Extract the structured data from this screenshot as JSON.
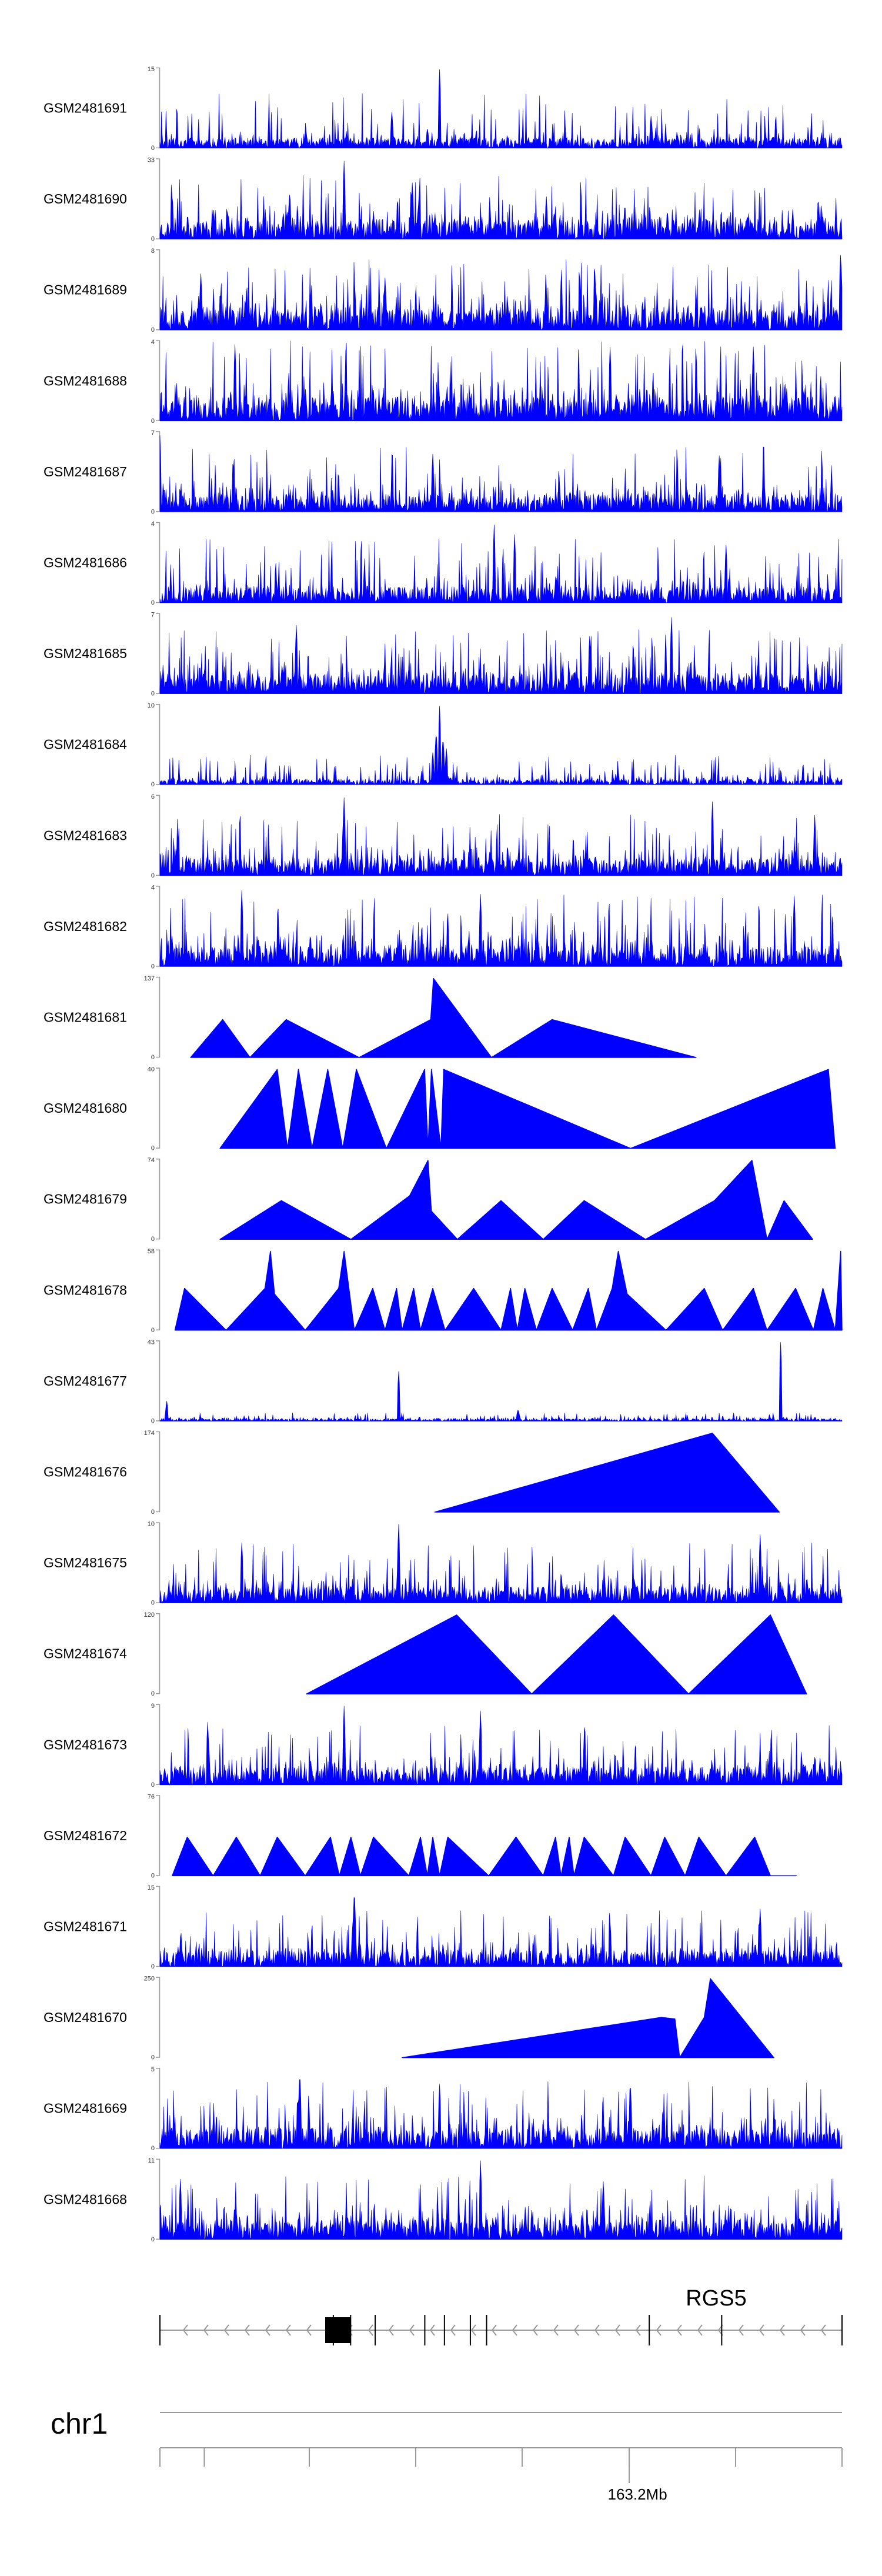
{
  "chart_data": {
    "type": "area",
    "title": "",
    "color": "#0000ff",
    "axis_color": "#999999",
    "tracks": [
      {
        "name": "GSM2481691",
        "ymax": 15,
        "pattern": "dense",
        "seed": 11,
        "base": 0.13,
        "amp": 0.55,
        "peaks": [
          [
            0.41,
            0.98
          ],
          [
            0.34,
            0.45
          ],
          [
            0.72,
            0.4
          ]
        ]
      },
      {
        "name": "GSM2481690",
        "ymax": 33,
        "pattern": "dense",
        "seed": 23,
        "base": 0.25,
        "amp": 0.55,
        "peaks": [
          [
            0.27,
            0.97
          ],
          [
            0.37,
            0.7
          ],
          [
            0.19,
            0.55
          ]
        ]
      },
      {
        "name": "GSM2481689",
        "ymax": 8,
        "pattern": "dense",
        "seed": 37,
        "base": 0.28,
        "amp": 0.6,
        "peaks": [
          [
            0.998,
            0.98
          ],
          [
            0.06,
            0.7
          ],
          [
            0.33,
            0.65
          ]
        ]
      },
      {
        "name": "GSM2481688",
        "ymax": 4,
        "pattern": "dense",
        "seed": 41,
        "base": 0.3,
        "amp": 0.7,
        "peaks": [
          [
            0.11,
            0.95
          ],
          [
            0.66,
            0.92
          ],
          [
            0.87,
            0.92
          ]
        ]
      },
      {
        "name": "GSM2481687",
        "ymax": 7,
        "pattern": "dense",
        "seed": 53,
        "base": 0.22,
        "amp": 0.6,
        "peaks": [
          [
            0.0,
            0.95
          ],
          [
            0.4,
            0.72
          ],
          [
            0.82,
            0.7
          ]
        ]
      },
      {
        "name": "GSM2481686",
        "ymax": 4,
        "pattern": "dense",
        "seed": 67,
        "base": 0.2,
        "amp": 0.6,
        "peaks": [
          [
            0.49,
            0.97
          ],
          [
            0.52,
            0.85
          ],
          [
            0.83,
            0.72
          ]
        ]
      },
      {
        "name": "GSM2481685",
        "ymax": 7,
        "pattern": "dense",
        "seed": 71,
        "base": 0.25,
        "amp": 0.55,
        "peaks": [
          [
            0.2,
            0.85
          ],
          [
            0.75,
            0.95
          ],
          [
            0.63,
            0.72
          ]
        ]
      },
      {
        "name": "GSM2481684",
        "ymax": 10,
        "pattern": "dense",
        "seed": 83,
        "base": 0.07,
        "amp": 0.3,
        "peaks": [
          [
            0.4,
            0.4
          ],
          [
            0.405,
            0.68
          ],
          [
            0.41,
            0.98
          ],
          [
            0.415,
            0.6
          ],
          [
            0.42,
            0.45
          ]
        ]
      },
      {
        "name": "GSM2481683",
        "ymax": 6,
        "pattern": "dense",
        "seed": 97,
        "base": 0.22,
        "amp": 0.55,
        "peaks": [
          [
            0.27,
            0.97
          ],
          [
            0.81,
            0.92
          ],
          [
            0.96,
            0.75
          ]
        ]
      },
      {
        "name": "GSM2481682",
        "ymax": 4,
        "pattern": "dense",
        "seed": 101,
        "base": 0.25,
        "amp": 0.65,
        "peaks": [
          [
            0.12,
            0.95
          ],
          [
            0.47,
            0.9
          ],
          [
            0.93,
            0.88
          ]
        ]
      },
      {
        "name": "GSM2481681",
        "ymax": 137,
        "pattern": "points",
        "points": [
          [
            0.045,
            0.0
          ],
          [
            0.092,
            0.47
          ],
          [
            0.132,
            0.0
          ],
          [
            0.185,
            0.47
          ],
          [
            0.292,
            0.0
          ],
          [
            0.397,
            0.47
          ],
          [
            0.401,
            0.98
          ],
          [
            0.486,
            0.0
          ],
          [
            0.575,
            0.47
          ],
          [
            0.786,
            0.0
          ]
        ]
      },
      {
        "name": "GSM2481680",
        "ymax": 40,
        "pattern": "points",
        "points": [
          [
            0.088,
            0.0
          ],
          [
            0.172,
            0.98
          ],
          [
            0.187,
            0.0
          ],
          [
            0.203,
            0.98
          ],
          [
            0.223,
            0.0
          ],
          [
            0.246,
            0.98
          ],
          [
            0.268,
            0.0
          ],
          [
            0.288,
            0.98
          ],
          [
            0.332,
            0.0
          ],
          [
            0.388,
            0.98
          ],
          [
            0.393,
            0.0
          ],
          [
            0.398,
            0.98
          ],
          [
            0.412,
            0.0
          ],
          [
            0.416,
            0.98
          ],
          [
            0.69,
            0.0
          ],
          [
            0.98,
            0.98
          ],
          [
            0.99,
            0.0
          ]
        ]
      },
      {
        "name": "GSM2481679",
        "ymax": 74,
        "pattern": "points",
        "points": [
          [
            0.088,
            0.0
          ],
          [
            0.178,
            0.48
          ],
          [
            0.28,
            0.0
          ],
          [
            0.366,
            0.54
          ],
          [
            0.393,
            0.98
          ],
          [
            0.398,
            0.35
          ],
          [
            0.436,
            0.0
          ],
          [
            0.5,
            0.48
          ],
          [
            0.562,
            0.0
          ],
          [
            0.622,
            0.48
          ],
          [
            0.712,
            0.0
          ],
          [
            0.813,
            0.48
          ],
          [
            0.868,
            0.98
          ],
          [
            0.89,
            0.0
          ],
          [
            0.915,
            0.48
          ],
          [
            0.957,
            0.0
          ]
        ]
      },
      {
        "name": "GSM2481678",
        "ymax": 58,
        "pattern": "points",
        "points": [
          [
            0.022,
            0.0
          ],
          [
            0.036,
            0.52
          ],
          [
            0.097,
            0.0
          ],
          [
            0.154,
            0.52
          ],
          [
            0.162,
            0.98
          ],
          [
            0.168,
            0.45
          ],
          [
            0.213,
            0.0
          ],
          [
            0.262,
            0.52
          ],
          [
            0.27,
            0.98
          ],
          [
            0.285,
            0.0
          ],
          [
            0.312,
            0.52
          ],
          [
            0.33,
            0.0
          ],
          [
            0.347,
            0.52
          ],
          [
            0.355,
            0.0
          ],
          [
            0.372,
            0.52
          ],
          [
            0.382,
            0.0
          ],
          [
            0.4,
            0.52
          ],
          [
            0.418,
            0.0
          ],
          [
            0.46,
            0.52
          ],
          [
            0.5,
            0.0
          ],
          [
            0.514,
            0.52
          ],
          [
            0.524,
            0.0
          ],
          [
            0.535,
            0.52
          ],
          [
            0.552,
            0.0
          ],
          [
            0.575,
            0.52
          ],
          [
            0.605,
            0.0
          ],
          [
            0.628,
            0.52
          ],
          [
            0.64,
            0.0
          ],
          [
            0.663,
            0.52
          ],
          [
            0.672,
            0.98
          ],
          [
            0.685,
            0.45
          ],
          [
            0.742,
            0.0
          ],
          [
            0.798,
            0.52
          ],
          [
            0.825,
            0.0
          ],
          [
            0.87,
            0.52
          ],
          [
            0.89,
            0.0
          ],
          [
            0.932,
            0.52
          ],
          [
            0.958,
            0.0
          ],
          [
            0.972,
            0.52
          ],
          [
            0.99,
            0.0
          ],
          [
            0.998,
            0.98
          ],
          [
            1.0,
            0.0
          ]
        ]
      },
      {
        "name": "GSM2481677",
        "ymax": 43,
        "pattern": "dense",
        "seed": 113,
        "base": 0.03,
        "amp": 0.08,
        "peaks": [
          [
            0.35,
            0.62
          ],
          [
            0.91,
            0.98
          ],
          [
            0.01,
            0.25
          ],
          [
            0.525,
            0.15
          ]
        ]
      },
      {
        "name": "GSM2481676",
        "ymax": 174,
        "pattern": "points",
        "points": [
          [
            0.403,
            0.0
          ],
          [
            0.81,
            0.98
          ],
          [
            0.908,
            0.0
          ]
        ]
      },
      {
        "name": "GSM2481675",
        "ymax": 10,
        "pattern": "dense",
        "seed": 127,
        "base": 0.2,
        "amp": 0.55,
        "peaks": [
          [
            0.35,
            0.98
          ],
          [
            0.12,
            0.75
          ],
          [
            0.88,
            0.85
          ]
        ]
      },
      {
        "name": "GSM2481674",
        "ymax": 120,
        "pattern": "points",
        "points": [
          [
            0.215,
            0.0
          ],
          [
            0.435,
            0.98
          ],
          [
            0.545,
            0.0
          ],
          [
            0.665,
            0.98
          ],
          [
            0.775,
            0.0
          ],
          [
            0.895,
            0.98
          ],
          [
            0.948,
            0.0
          ]
        ]
      },
      {
        "name": "GSM2481673",
        "ymax": 9,
        "pattern": "dense",
        "seed": 131,
        "base": 0.22,
        "amp": 0.55,
        "peaks": [
          [
            0.27,
            0.98
          ],
          [
            0.47,
            0.92
          ],
          [
            0.07,
            0.78
          ]
        ]
      },
      {
        "name": "GSM2481672",
        "ymax": 76,
        "pattern": "points",
        "points": [
          [
            0.018,
            0.0
          ],
          [
            0.04,
            0.48
          ],
          [
            0.078,
            0.0
          ],
          [
            0.112,
            0.48
          ],
          [
            0.147,
            0.0
          ],
          [
            0.172,
            0.48
          ],
          [
            0.213,
            0.0
          ],
          [
            0.25,
            0.48
          ],
          [
            0.263,
            0.0
          ],
          [
            0.28,
            0.48
          ],
          [
            0.294,
            0.0
          ],
          [
            0.313,
            0.48
          ],
          [
            0.365,
            0.0
          ],
          [
            0.382,
            0.48
          ],
          [
            0.392,
            0.0
          ],
          [
            0.4,
            0.48
          ],
          [
            0.41,
            0.0
          ],
          [
            0.422,
            0.48
          ],
          [
            0.482,
            0.0
          ],
          [
            0.522,
            0.48
          ],
          [
            0.562,
            0.0
          ],
          [
            0.58,
            0.48
          ],
          [
            0.588,
            0.0
          ],
          [
            0.6,
            0.48
          ],
          [
            0.607,
            0.0
          ],
          [
            0.622,
            0.48
          ],
          [
            0.665,
            0.0
          ],
          [
            0.682,
            0.48
          ],
          [
            0.72,
            0.0
          ],
          [
            0.74,
            0.48
          ],
          [
            0.77,
            0.0
          ],
          [
            0.79,
            0.48
          ],
          [
            0.83,
            0.0
          ],
          [
            0.872,
            0.48
          ],
          [
            0.895,
            0.0
          ],
          [
            0.933,
            0.0
          ]
        ]
      },
      {
        "name": "GSM2481671",
        "ymax": 15,
        "pattern": "dense",
        "seed": 139,
        "base": 0.2,
        "amp": 0.5,
        "peaks": [
          [
            0.285,
            0.98
          ],
          [
            0.66,
            0.55
          ],
          [
            0.88,
            0.72
          ]
        ]
      },
      {
        "name": "GSM2481670",
        "ymax": 250,
        "pattern": "points",
        "points": [
          [
            0.355,
            0.0
          ],
          [
            0.735,
            0.5
          ],
          [
            0.755,
            0.48
          ],
          [
            0.762,
            0.0
          ],
          [
            0.798,
            0.5
          ],
          [
            0.807,
            0.98
          ],
          [
            0.9,
            0.0
          ]
        ]
      },
      {
        "name": "GSM2481669",
        "ymax": 5,
        "pattern": "dense",
        "seed": 151,
        "base": 0.25,
        "amp": 0.6,
        "peaks": [
          [
            0.205,
            0.98
          ],
          [
            0.41,
            0.8
          ],
          [
            0.69,
            0.75
          ]
        ]
      },
      {
        "name": "GSM2481668",
        "ymax": 11,
        "pattern": "dense",
        "seed": 163,
        "base": 0.25,
        "amp": 0.55,
        "peaks": [
          [
            0.47,
            0.98
          ],
          [
            0.03,
            0.75
          ],
          [
            0.65,
            0.72
          ]
        ]
      }
    ],
    "gene": {
      "name": "RGS5",
      "strand": "-",
      "exons": [
        0.0,
        0.2542,
        0.2796,
        0.3156,
        0.3883,
        0.4171,
        0.4551,
        0.4789,
        0.7174,
        0.8236,
        1.0
      ]
    },
    "chromosome": "chr1",
    "axis": {
      "tick_label": "163.2Mb",
      "major_tick": 0.688,
      "minor_ticks": [
        0.0,
        0.065,
        0.219,
        0.375,
        0.531,
        0.688,
        0.844,
        1.0
      ]
    }
  }
}
